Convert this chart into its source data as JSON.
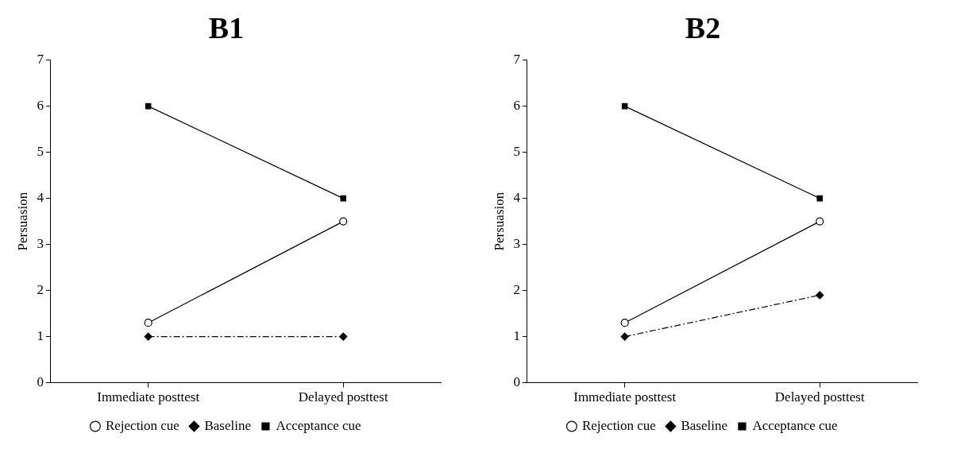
{
  "chart_data": [
    {
      "type": "line",
      "title": "B1",
      "ylabel": "Persuasion",
      "categories": [
        "Immediate posttest",
        "Delayed posttest"
      ],
      "ylim": [
        0,
        7
      ],
      "yticks": [
        0,
        1,
        2,
        3,
        4,
        5,
        6,
        7
      ],
      "grid": false,
      "legend": "bottom",
      "series": [
        {
          "name": "Rejection cue",
          "color": "#000000",
          "values": [
            1.3,
            3.5
          ],
          "marker": "circle",
          "line_style": "solid"
        },
        {
          "name": "Baseline",
          "color": "#000000",
          "values": [
            1,
            1
          ],
          "marker": "diamond",
          "line_style": "dashed"
        },
        {
          "name": "Acceptance cue",
          "color": "#000000",
          "values": [
            6,
            4
          ],
          "marker": "square",
          "line_style": "solid"
        }
      ]
    },
    {
      "type": "line",
      "title": "B2",
      "ylabel": "Persuasion",
      "categories": [
        "Immediate posttest",
        "Delayed posttest"
      ],
      "ylim": [
        0,
        7
      ],
      "yticks": [
        0,
        1,
        2,
        3,
        4,
        5,
        6,
        7
      ],
      "grid": false,
      "legend": "bottom",
      "series": [
        {
          "name": "Rejection cue",
          "color": "#000000",
          "values": [
            1.3,
            3.5
          ],
          "marker": "circle",
          "line_style": "solid"
        },
        {
          "name": "Baseline",
          "color": "#000000",
          "values": [
            1,
            1.9
          ],
          "marker": "diamond",
          "line_style": "dashed"
        },
        {
          "name": "Acceptance cue",
          "color": "#000000",
          "values": [
            6,
            4
          ],
          "marker": "square",
          "line_style": "solid"
        }
      ]
    }
  ]
}
